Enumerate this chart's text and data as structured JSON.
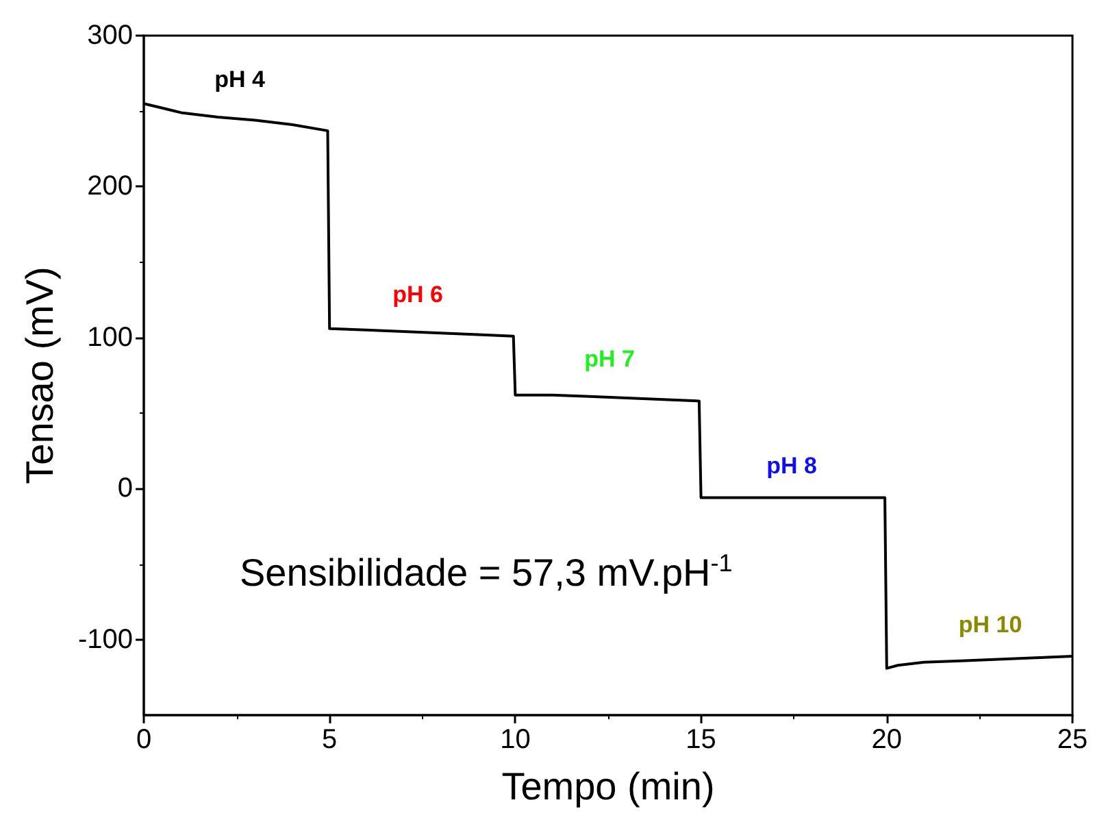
{
  "chart_data": {
    "type": "line",
    "xlabel": "Tempo (min)",
    "ylabel": "Tensao (mV)",
    "x": [
      0,
      0.5,
      1,
      2,
      3,
      4,
      4.95,
      5,
      6,
      7,
      8,
      9,
      9.95,
      10,
      11,
      12,
      13,
      14,
      14.95,
      15,
      16,
      17,
      18,
      19,
      19.95,
      20,
      20.3,
      21,
      22,
      23,
      24,
      25
    ],
    "values": [
      255,
      252,
      249,
      246,
      244,
      241,
      237,
      106,
      105,
      104,
      103,
      102,
      101,
      62,
      62,
      61,
      60,
      59,
      58,
      -6,
      -6,
      -6,
      -6,
      -6,
      -6,
      -119,
      -117,
      -115,
      -114,
      -113,
      -112,
      -111
    ],
    "color": "#000000",
    "marker": "none",
    "line_style": "solid",
    "xlim": [
      0,
      25
    ],
    "xticks": [
      0,
      5,
      10,
      15,
      20,
      25
    ],
    "ylim": [
      -150,
      300
    ],
    "yticks": [
      -100,
      0,
      100,
      200,
      300
    ],
    "annotations": [
      "pH 4",
      "pH 6",
      "pH 7",
      "pH 8",
      "pH 10",
      "Sensibilidade = 57,3 mV.pH$^{-1}$"
    ]
  }
}
